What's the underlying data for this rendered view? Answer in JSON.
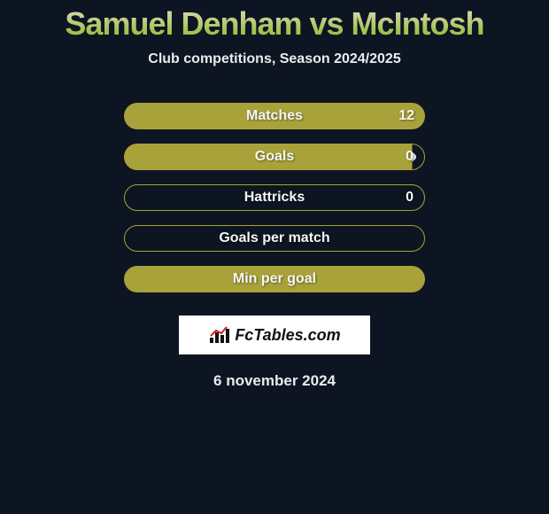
{
  "title": "Samuel Denham vs McIntosh",
  "subtitle": "Club competitions, Season 2024/2025",
  "stats": [
    {
      "label": "Matches",
      "value": "12",
      "style": "fill-full",
      "show_ovals": true
    },
    {
      "label": "Goals",
      "value": "0",
      "style": "fill-partial",
      "show_ovals": true
    },
    {
      "label": "Hattricks",
      "value": "0",
      "style": "outline",
      "show_ovals": false
    },
    {
      "label": "Goals per match",
      "value": "",
      "style": "outline",
      "show_ovals": false
    },
    {
      "label": "Min per goal",
      "value": "",
      "style": "fill-full",
      "show_ovals": false
    }
  ],
  "colors": {
    "background": "#0c1521",
    "bar_fill": "#a9a23a",
    "oval": "#f0f0f0",
    "text_light": "#e9ecef",
    "title_gradient_top": "#e6dcc5",
    "title_gradient_bottom": "#a0c24e"
  },
  "branding": {
    "site": "FcTables.com"
  },
  "date": "6 november 2024"
}
